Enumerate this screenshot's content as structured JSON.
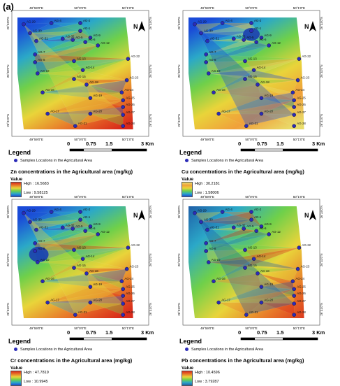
{
  "figure_label": "(a)",
  "coords": {
    "lon": [
      "49°59'0\"E",
      "50°0'0\"E",
      "50°1'0\"E"
    ],
    "lat": [
      "26°33'0\"N",
      "26°32'0\"N",
      "26°31'0\"N"
    ]
  },
  "north": "N",
  "samples": [
    "AG-29",
    "AG-4",
    "AG-2",
    "AG-30",
    "AG-1",
    "AG-9",
    "AG-31",
    "AG-32",
    "AG-5",
    "AG-6",
    "AG-12",
    "AG-7",
    "AG-8",
    "AG-13",
    "AG-22",
    "AG-10",
    "AG-14",
    "AG-15",
    "AG-23",
    "AG-16",
    "AG-18",
    "AG-24",
    "AG-19",
    "AG-25",
    "AG-26",
    "AG-17",
    "AG-20",
    "AG-27",
    "AG-21",
    "AG-28"
  ],
  "legend": {
    "title": "Legend",
    "samples_label": "Samples Locations in the Agricultural Area",
    "value_label": "Value"
  },
  "scale": {
    "ticks": [
      "0",
      "0.75",
      "1.5",
      "3 Km"
    ]
  },
  "panels": [
    {
      "id": "zn",
      "title": "Zn concentrations in the Agricultural area (mg/kg)",
      "high": "High : 16.5683",
      "low": "Low : 9.58125",
      "palette": [
        "#1a4bd8",
        "#2ba8c8",
        "#6fd04a",
        "#e9d43a",
        "#e87a2a",
        "#d92a1a"
      ]
    },
    {
      "id": "cu",
      "title": "Cu concentrations in the Agricultural area (mg/kg)",
      "high": "High : 30.2181",
      "low": "Low : 1.58006",
      "palette": [
        "#1a4bd8",
        "#2ba8c8",
        "#6fd04a",
        "#e9d43a",
        "#f0a03a",
        "#e9dc6a"
      ]
    },
    {
      "id": "cr",
      "title": "Cr concentrations in the Agricultural area (mg/kg)",
      "high": "High : 47.7819",
      "low": "Low : 10.9945",
      "palette": [
        "#1a4bd8",
        "#2ba8c8",
        "#6fd04a",
        "#e9d43a",
        "#e87a2a",
        "#d92a1a"
      ]
    },
    {
      "id": "pb",
      "title": "Pb concentrations in the Agricultural area (mg/kg)",
      "high": "High : 10.4596",
      "low": "Low : 3.79287",
      "palette": [
        "#1f5fa8",
        "#2ba8c8",
        "#6fd04a",
        "#e9d43a",
        "#e87a2a",
        "#d92a1a"
      ]
    }
  ]
}
